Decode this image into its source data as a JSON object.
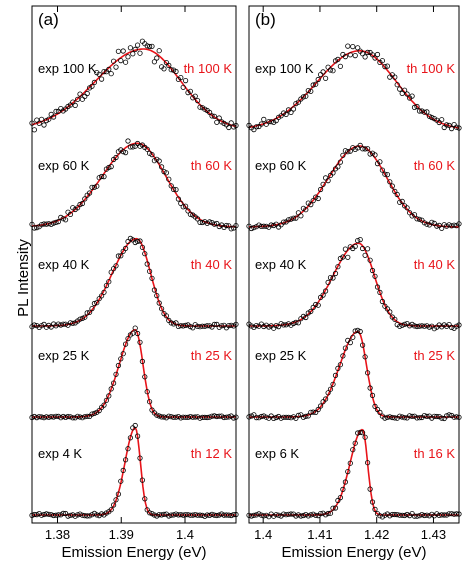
{
  "ylabel": "PL Intensity",
  "chart_data": [
    {
      "type": "scatter",
      "panel_label": "(a)",
      "xlabel": "Emission Energy (eV)",
      "xlim": [
        1.376,
        1.408
      ],
      "xticks": [
        1.38,
        1.39,
        1.4
      ],
      "xtick_labels": [
        "1.38",
        "1.39",
        "1.4"
      ],
      "grid": false,
      "legend": "none",
      "colors": {
        "experiment": "#000000",
        "theory": "#e8141a"
      },
      "series": [
        {
          "exp_label": "exp 100 K",
          "th_label": "th 100 K",
          "peak": 1.3935,
          "left_width": 0.0075,
          "right_width": 0.0058,
          "amplitude": 0.9,
          "noise": 0.06
        },
        {
          "exp_label": "exp 60 K",
          "th_label": "th 60 K",
          "peak": 1.3925,
          "left_width": 0.0055,
          "right_width": 0.0045,
          "amplitude": 0.93,
          "noise": 0.04
        },
        {
          "exp_label": "exp 40 K",
          "th_label": "th 40 K",
          "peak": 1.3924,
          "left_width": 0.0038,
          "right_width": 0.0022,
          "amplitude": 0.97,
          "noise": 0.03
        },
        {
          "exp_label": "exp 25 K",
          "th_label": "th 25 K",
          "peak": 1.3922,
          "left_width": 0.0025,
          "right_width": 0.0012,
          "amplitude": 0.97,
          "noise": 0.02
        },
        {
          "exp_label": "exp 4 K",
          "th_label": "th 12 K",
          "peak": 1.3922,
          "left_width": 0.0016,
          "right_width": 0.0008,
          "amplitude": 0.97,
          "noise": 0.02
        }
      ]
    },
    {
      "type": "scatter",
      "panel_label": "(b)",
      "xlabel": "Emission Energy (eV)",
      "xlim": [
        1.3975,
        1.4345
      ],
      "xticks": [
        1.4,
        1.41,
        1.42,
        1.43
      ],
      "xtick_labels": [
        "1.4",
        "1.41",
        "1.42",
        "1.43"
      ],
      "grid": false,
      "legend": "none",
      "colors": {
        "experiment": "#000000",
        "theory": "#e8141a"
      },
      "series": [
        {
          "exp_label": "exp 100 K",
          "th_label": "th 100 K",
          "peak": 1.417,
          "left_width": 0.0075,
          "right_width": 0.0065,
          "amplitude": 0.88,
          "noise": 0.05
        },
        {
          "exp_label": "exp 60 K",
          "th_label": "th 60 K",
          "peak": 1.417,
          "left_width": 0.0055,
          "right_width": 0.0048,
          "amplitude": 0.9,
          "noise": 0.04
        },
        {
          "exp_label": "exp 40 K",
          "th_label": "th 40 K",
          "peak": 1.4168,
          "left_width": 0.0045,
          "right_width": 0.0028,
          "amplitude": 0.92,
          "noise": 0.04
        },
        {
          "exp_label": "exp 25 K",
          "th_label": "th 25 K",
          "peak": 1.4167,
          "left_width": 0.0032,
          "right_width": 0.0015,
          "amplitude": 0.95,
          "noise": 0.03
        },
        {
          "exp_label": "exp 6 K",
          "th_label": "th 16 K",
          "peak": 1.4175,
          "left_width": 0.0022,
          "right_width": 0.0009,
          "amplitude": 0.95,
          "noise": 0.03
        }
      ]
    }
  ]
}
